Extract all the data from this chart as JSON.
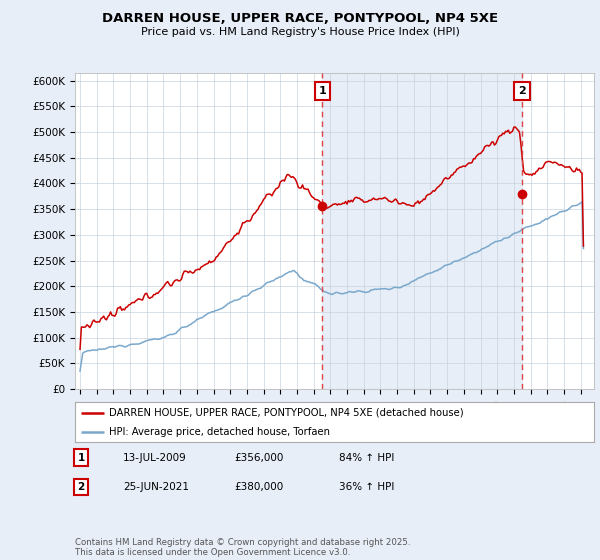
{
  "title": "DARREN HOUSE, UPPER RACE, PONTYPOOL, NP4 5XE",
  "subtitle": "Price paid vs. HM Land Registry's House Price Index (HPI)",
  "ylabel_ticks": [
    "£0",
    "£50K",
    "£100K",
    "£150K",
    "£200K",
    "£250K",
    "£300K",
    "£350K",
    "£400K",
    "£450K",
    "£500K",
    "£550K",
    "£600K"
  ],
  "ytick_values": [
    0,
    50000,
    100000,
    150000,
    200000,
    250000,
    300000,
    350000,
    400000,
    450000,
    500000,
    550000,
    600000
  ],
  "ylim": [
    0,
    615000
  ],
  "xlim_start": 1994.7,
  "xlim_end": 2025.8,
  "red_line_color": "#cc0000",
  "blue_line_color": "#7aa8cc",
  "dashed_line_color": "#dd4444",
  "shade_color": "#dde8f5",
  "marker1_x": 2009.53,
  "marker1_y": 356000,
  "marker2_x": 2021.48,
  "marker2_y": 380000,
  "legend_red_label": "DARREN HOUSE, UPPER RACE, PONTYPOOL, NP4 5XE (detached house)",
  "legend_blue_label": "HPI: Average price, detached house, Torfaen",
  "annotation1_label": "1",
  "annotation1_date": "13-JUL-2009",
  "annotation1_price": "£356,000",
  "annotation1_hpi": "84% ↑ HPI",
  "annotation2_label": "2",
  "annotation2_date": "25-JUN-2021",
  "annotation2_price": "£380,000",
  "annotation2_hpi": "36% ↑ HPI",
  "footer": "Contains HM Land Registry data © Crown copyright and database right 2025.\nThis data is licensed under the Open Government Licence v3.0.",
  "background_color": "#e8eef8",
  "plot_background": "#ffffff"
}
